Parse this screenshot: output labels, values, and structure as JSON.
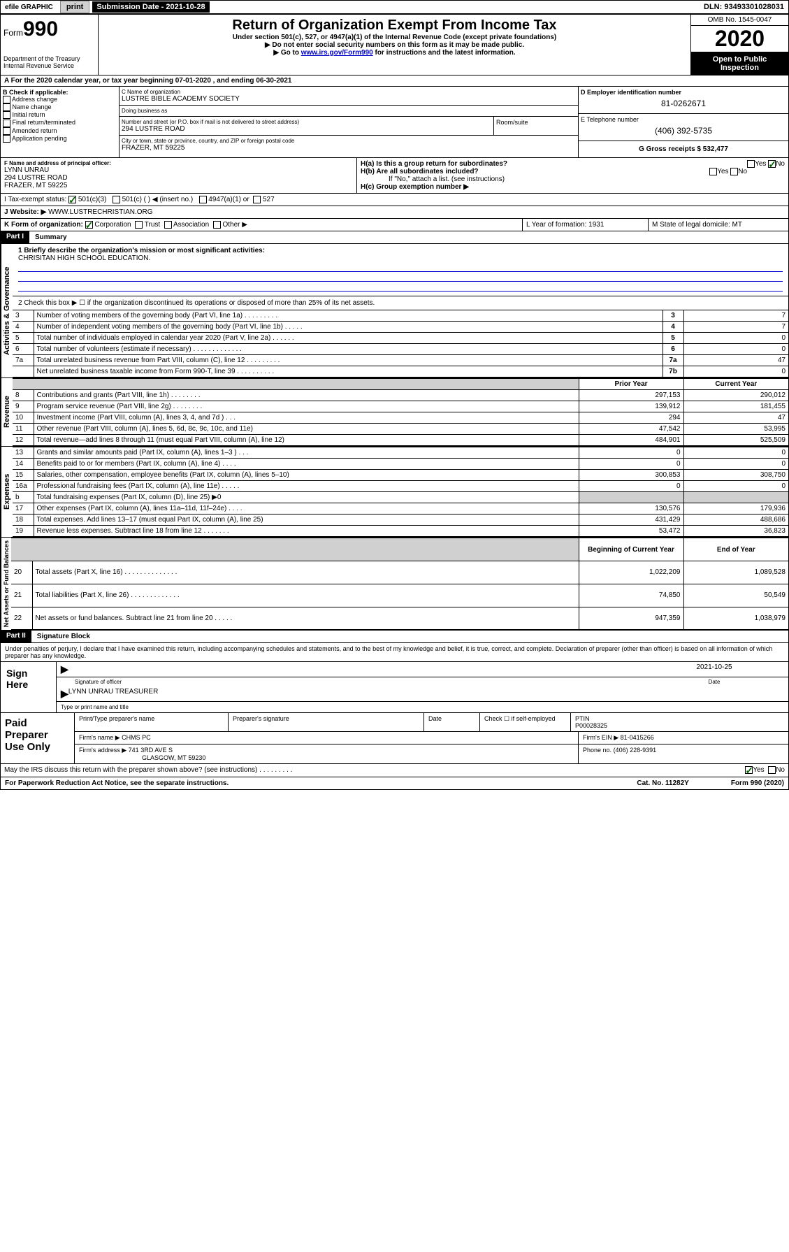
{
  "topbar": {
    "efile": "efile GRAPHIC",
    "print": "print",
    "submission_label": "Submission Date - 2021-10-28",
    "dln_label": "DLN: 93493301028031"
  },
  "header": {
    "form_prefix": "Form",
    "form_number": "990",
    "dept": "Department of the Treasury\nInternal Revenue Service",
    "title": "Return of Organization Exempt From Income Tax",
    "subtitle": "Under section 501(c), 527, or 4947(a)(1) of the Internal Revenue Code (except private foundations)",
    "note1": "▶ Do not enter social security numbers on this form as it may be made public.",
    "note2_pre": "▶ Go to ",
    "note2_link": "www.irs.gov/Form990",
    "note2_post": " for instructions and the latest information.",
    "omb": "OMB No. 1545-0047",
    "year": "2020",
    "inspect": "Open to Public Inspection"
  },
  "line_a": "A For the 2020 calendar year, or tax year beginning 07-01-2020   , and ending 06-30-2021",
  "section_b": {
    "label": "B Check if applicable:",
    "items": [
      "Address change",
      "Name change",
      "Initial return",
      "Final return/terminated",
      "Amended return",
      "Application pending"
    ]
  },
  "section_c": {
    "name_label": "C Name of organization",
    "name": "LUSTRE BIBLE ACADEMY SOCIETY",
    "dba_label": "Doing business as",
    "dba": "",
    "addr_label": "Number and street (or P.O. box if mail is not delivered to street address)",
    "room_label": "Room/suite",
    "addr": "294 LUSTRE ROAD",
    "city_label": "City or town, state or province, country, and ZIP or foreign postal code",
    "city": "FRAZER, MT  59225"
  },
  "section_d": {
    "label": "D Employer identification number",
    "value": "81-0262671"
  },
  "section_e": {
    "label": "E Telephone number",
    "value": "(406) 392-5735"
  },
  "section_g": {
    "label": "G Gross receipts $ 532,477"
  },
  "section_f": {
    "label": "F  Name and address of principal officer:",
    "name": "LYNN UNRAU",
    "addr1": "294 LUSTRE ROAD",
    "addr2": "FRAZER, MT  59225"
  },
  "section_h": {
    "a_label": "H(a)  Is this a group return for subordinates?",
    "a_yes": "Yes",
    "a_no": "No",
    "b_label": "H(b)  Are all subordinates included?",
    "b_yes": "Yes",
    "b_no": "No",
    "b_note": "If \"No,\" attach a list. (see instructions)",
    "c_label": "H(c)  Group exemption number ▶"
  },
  "section_i": {
    "label": "I    Tax-exempt status:",
    "c3": "501(c)(3)",
    "c_other": "501(c) (   ) ◀ (insert no.)",
    "a1": "4947(a)(1) or",
    "s527": "527"
  },
  "section_j": {
    "label": "J   Website: ▶",
    "value": "WWW.LUSTRECHRISTIAN.ORG"
  },
  "section_k": {
    "label": "K Form of organization:",
    "corp": "Corporation",
    "trust": "Trust",
    "assoc": "Association",
    "other": "Other ▶"
  },
  "section_l": {
    "label": "L Year of formation: 1931"
  },
  "section_m": {
    "label": "M State of legal domicile: MT"
  },
  "part1": {
    "header": "Part I",
    "title": "Summary",
    "q1_label": "1  Briefly describe the organization's mission or most significant activities:",
    "q1_value": "CHRISITAN HIGH SCHOOL EDUCATION.",
    "q2": "2   Check this box ▶ ☐  if the organization discontinued its operations or disposed of more than 25% of its net assets.",
    "lines_gov": [
      {
        "n": "3",
        "t": "Number of voting members of the governing body (Part VI, line 1a)   .    .    .    .    .    .    .    .    .",
        "k": "3",
        "v": "7"
      },
      {
        "n": "4",
        "t": "Number of independent voting members of the governing body (Part VI, line 1b)   .    .    .    .    .",
        "k": "4",
        "v": "7"
      },
      {
        "n": "5",
        "t": "Total number of individuals employed in calendar year 2020 (Part V, line 2a)   .    .    .    .    .    .",
        "k": "5",
        "v": "0"
      },
      {
        "n": "6",
        "t": "Total number of volunteers (estimate if necessary)   .    .    .    .    .    .    .    .    .    .    .    .    .",
        "k": "6",
        "v": "0"
      },
      {
        "n": "7a",
        "t": "Total unrelated business revenue from Part VIII, column (C), line 12   .    .    .    .    .    .    .    .    .",
        "k": "7a",
        "v": "47"
      },
      {
        "n": "",
        "t": "Net unrelated business taxable income from Form 990-T, line 39   .    .    .    .    .    .    .    .    .    .",
        "k": "7b",
        "v": "0"
      }
    ],
    "col_prior": "Prior Year",
    "col_current": "Current Year",
    "lines_rev": [
      {
        "n": "8",
        "t": "Contributions and grants (Part VIII, line 1h)   .    .    .    .    .    .    .    .",
        "p": "297,153",
        "c": "290,012"
      },
      {
        "n": "9",
        "t": "Program service revenue (Part VIII, line 2g)   .    .    .    .    .    .    .    .",
        "p": "139,912",
        "c": "181,455"
      },
      {
        "n": "10",
        "t": "Investment income (Part VIII, column (A), lines 3, 4, and 7d )   .    .    .",
        "p": "294",
        "c": "47"
      },
      {
        "n": "11",
        "t": "Other revenue (Part VIII, column (A), lines 5, 6d, 8c, 9c, 10c, and 11e)",
        "p": "47,542",
        "c": "53,995"
      },
      {
        "n": "12",
        "t": "Total revenue—add lines 8 through 11 (must equal Part VIII, column (A), line 12)",
        "p": "484,901",
        "c": "525,509"
      }
    ],
    "lines_exp": [
      {
        "n": "13",
        "t": "Grants and similar amounts paid (Part IX, column (A), lines 1–3 )   .    .    .",
        "p": "0",
        "c": "0"
      },
      {
        "n": "14",
        "t": "Benefits paid to or for members (Part IX, column (A), line 4)   .    .    .    .",
        "p": "0",
        "c": "0"
      },
      {
        "n": "15",
        "t": "Salaries, other compensation, employee benefits (Part IX, column (A), lines 5–10)",
        "p": "300,853",
        "c": "308,750"
      },
      {
        "n": "16a",
        "t": "Professional fundraising fees (Part IX, column (A), line 11e)   .    .    .    .    .",
        "p": "0",
        "c": "0"
      },
      {
        "n": "b",
        "t": "Total fundraising expenses (Part IX, column (D), line 25) ▶0",
        "p": "",
        "c": "",
        "shaded": true
      },
      {
        "n": "17",
        "t": "Other expenses (Part IX, column (A), lines 11a–11d, 11f–24e)   .    .    .    .",
        "p": "130,576",
        "c": "179,936"
      },
      {
        "n": "18",
        "t": "Total expenses. Add lines 13–17 (must equal Part IX, column (A), line 25)",
        "p": "431,429",
        "c": "488,686"
      },
      {
        "n": "19",
        "t": "Revenue less expenses. Subtract line 18 from line 12   .    .    .    .    .    .    .",
        "p": "53,472",
        "c": "36,823"
      }
    ],
    "col_begin": "Beginning of Current Year",
    "col_end": "End of Year",
    "lines_net": [
      {
        "n": "20",
        "t": "Total assets (Part X, line 16)   .    .    .    .    .    .    .    .    .    .    .    .    .    .",
        "p": "1,022,209",
        "c": "1,089,528"
      },
      {
        "n": "21",
        "t": "Total liabilities (Part X, line 26)   .    .    .    .    .    .    .    .    .    .    .    .    .",
        "p": "74,850",
        "c": "50,549"
      },
      {
        "n": "22",
        "t": "Net assets or fund balances. Subtract line 21 from line 20   .    .    .    .    .",
        "p": "947,359",
        "c": "1,038,979"
      }
    ],
    "vlabel_gov": "Activities & Governance",
    "vlabel_rev": "Revenue",
    "vlabel_exp": "Expenses",
    "vlabel_net": "Net Assets or Fund Balances"
  },
  "part2": {
    "header": "Part II",
    "title": "Signature Block",
    "declaration": "Under penalties of perjury, I declare that I have examined this return, including accompanying schedules and statements, and to the best of my knowledge and belief, it is true, correct, and complete. Declaration of preparer (other than officer) is based on all information of which preparer has any knowledge.",
    "sign_here": "Sign Here",
    "sig_officer": "Signature of officer",
    "sig_date_label": "Date",
    "sig_date": "2021-10-25",
    "officer_name": "LYNN UNRAU TREASURER",
    "name_title_label": "Type or print name and title",
    "paid_label": "Paid Preparer Use Only",
    "prep_name_label": "Print/Type preparer's name",
    "prep_sig_label": "Preparer's signature",
    "prep_date_label": "Date",
    "self_emp_label": "Check ☐ if self-employed",
    "ptin_label": "PTIN",
    "ptin": "P00028325",
    "firm_name_label": "Firm's name    ▶",
    "firm_name": "CHMS PC",
    "firm_ein_label": "Firm's EIN ▶",
    "firm_ein": "81-0415266",
    "firm_addr_label": "Firm's address ▶",
    "firm_addr": "741 3RD AVE S",
    "firm_city": "GLASGOW, MT  59230",
    "phone_label": "Phone no.",
    "phone": "(406) 228-9391",
    "discuss": "May the IRS discuss this return with the preparer shown above? (see instructions)   .    .    .    .    .    .    .    .    .",
    "yes": "Yes",
    "no": "No"
  },
  "footer": {
    "left": "For Paperwork Reduction Act Notice, see the separate instructions.",
    "mid": "Cat. No. 11282Y",
    "right": "Form 990 (2020)"
  }
}
